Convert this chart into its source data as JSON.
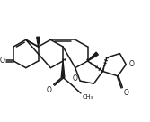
{
  "bg_color": "#ffffff",
  "line_color": "#1a1a1a",
  "lw": 1.1,
  "figsize": [
    1.67,
    1.36
  ],
  "dpi": 100,
  "xlim": [
    -2,
    105
  ],
  "ylim": [
    -2,
    86
  ]
}
